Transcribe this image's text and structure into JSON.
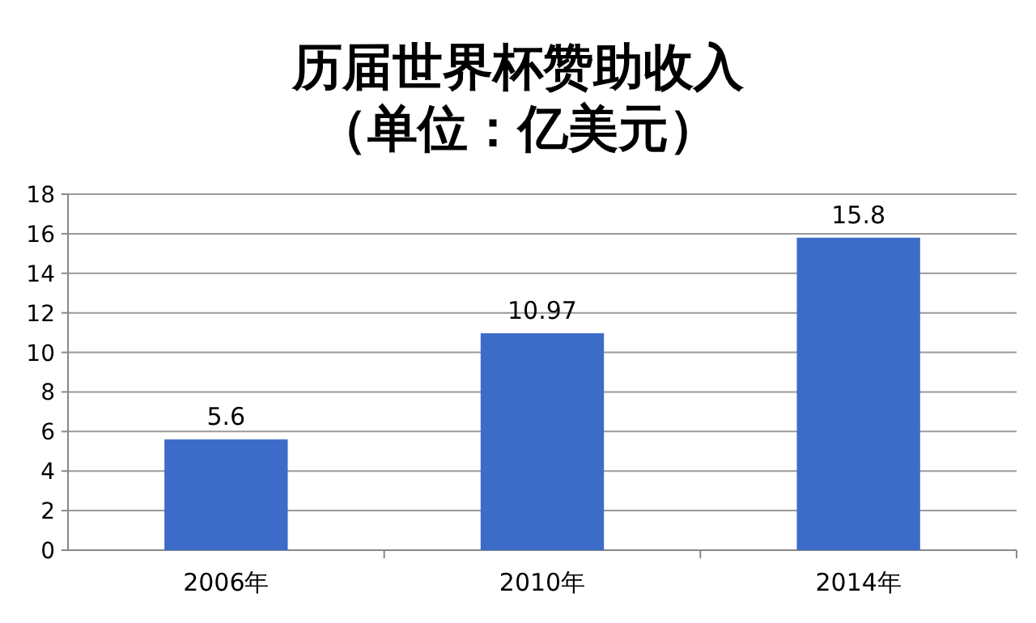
{
  "chart_data": {
    "type": "bar",
    "title": "历届世界杯赞助收入",
    "subtitle": "（单位：亿美元）",
    "categories": [
      "2006年",
      "2010年",
      "2014年"
    ],
    "values": [
      5.6,
      10.97,
      15.8
    ],
    "color": "#3d6cc8",
    "ylim": [
      0,
      18
    ],
    "yticks": [
      0,
      2,
      4,
      6,
      8,
      10,
      12,
      14,
      16,
      18
    ],
    "grid": "y",
    "data_labels": true
  }
}
